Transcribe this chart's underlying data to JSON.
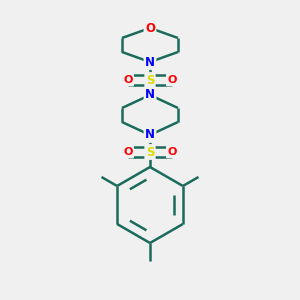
{
  "background_color": "#f0f0f0",
  "bond_color": "#1a6b5a",
  "bond_width": 1.8,
  "atom_colors": {
    "O": "#ff0000",
    "N": "#0000ff",
    "S": "#dddd00",
    "C": "#1a6b5a"
  },
  "figsize": [
    3.0,
    3.0
  ],
  "dpi": 100
}
